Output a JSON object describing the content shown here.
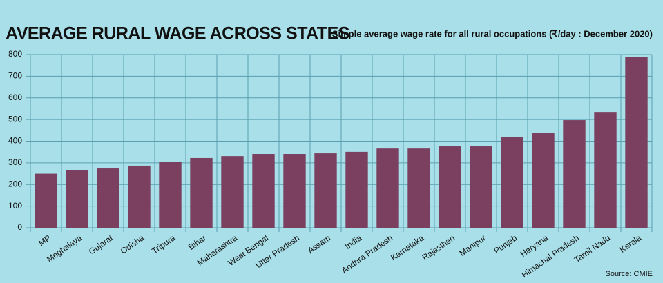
{
  "chart_data": {
    "type": "bar",
    "title": "AVERAGE RURAL WAGE ACROSS STATES",
    "subtitle": "Simple average wage  rate for all rural  occupations (₹/day : December 2020)",
    "source": "Source: CMIE",
    "categories": [
      "MP",
      "Meghalaya",
      "Gujarat",
      "Odisha",
      "Tripura",
      "Bihar",
      "Maharashtra",
      "West Bengal",
      "Uttar Pradesh",
      "Assam",
      "India",
      "Andhra Pradesh",
      "Karnataka",
      "Rajasthan",
      "Manipur",
      "Punjab",
      "Haryana",
      "Himachal Pradesh",
      "Tamil Nadu",
      "Kerala"
    ],
    "values": [
      250,
      267,
      274,
      287,
      306,
      322,
      331,
      341,
      341,
      344,
      351,
      366,
      366,
      376,
      376,
      418,
      437,
      497,
      535,
      790
    ],
    "color": "#7b4060",
    "ylim": [
      0,
      800
    ],
    "yticks": [
      0,
      100,
      200,
      300,
      400,
      500,
      600,
      700,
      800
    ],
    "grid": true
  }
}
